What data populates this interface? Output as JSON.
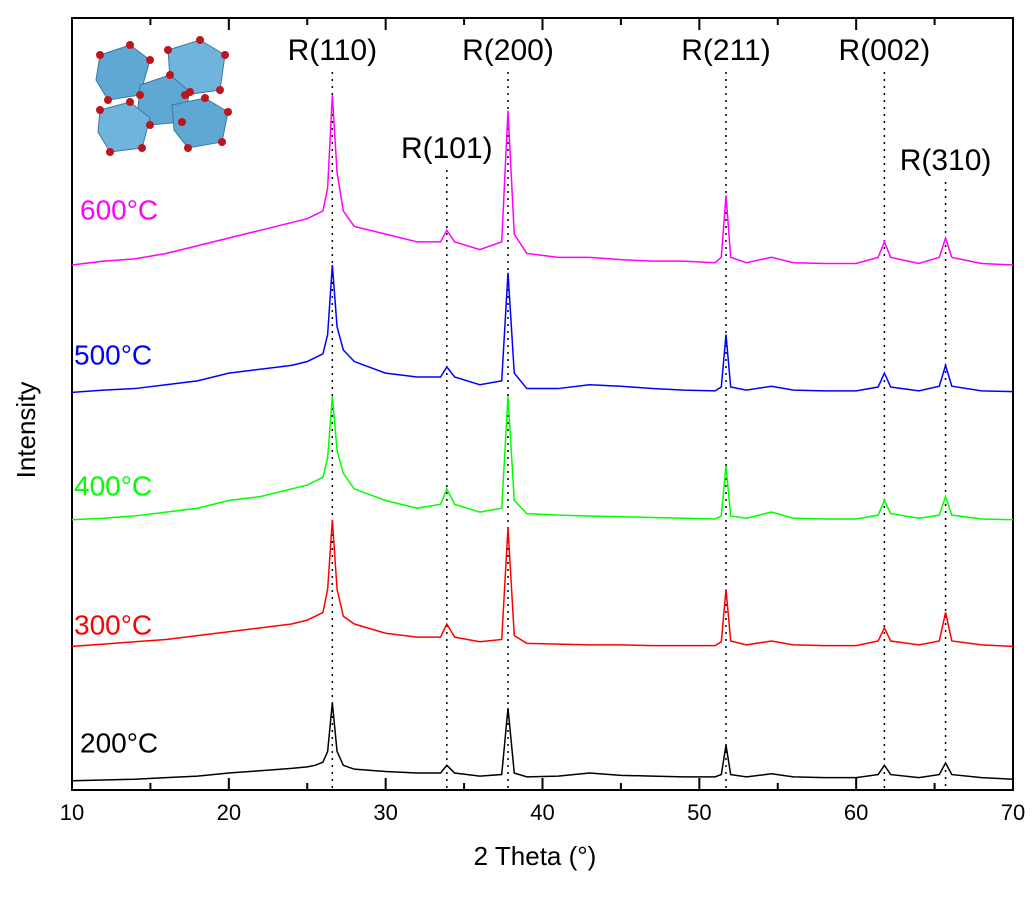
{
  "chart_data": {
    "type": "line",
    "x_label": "2 Theta (°)",
    "y_label": "Intensity",
    "xlim": [
      10,
      70
    ],
    "ylim": [
      0,
      100
    ],
    "xticks": [
      10,
      20,
      30,
      40,
      50,
      60,
      70
    ],
    "xminor_ticks": [
      15,
      25,
      35,
      45,
      55,
      65
    ],
    "x": [
      10,
      12,
      14,
      16,
      18,
      20,
      22,
      24,
      25,
      25.5,
      26,
      26.3,
      26.6,
      26.9,
      27.3,
      28,
      30,
      32,
      33.5,
      33.9,
      34.4,
      36,
      37.4,
      37.8,
      38.2,
      39,
      41,
      43,
      45,
      47,
      49,
      51,
      51.4,
      51.7,
      52,
      53,
      54.6,
      56,
      58,
      60,
      61.4,
      61.8,
      62.2,
      64,
      65.3,
      65.7,
      66.1,
      68,
      70
    ],
    "series": [
      {
        "name": "600°C",
        "color": "#ff00ff",
        "values": [
          68,
          68.5,
          68.8,
          69.5,
          70.5,
          71.5,
          72.5,
          73.5,
          74,
          74.5,
          75,
          78,
          90,
          80,
          75,
          73,
          72,
          71,
          71,
          72.5,
          71,
          70,
          71,
          88,
          72,
          69.5,
          69,
          69,
          68.7,
          68.5,
          68.5,
          68.3,
          69,
          77,
          69,
          68.3,
          69,
          68.3,
          68.2,
          68.2,
          69,
          71,
          69,
          68.2,
          69,
          71.5,
          69,
          68.2,
          68
        ]
      },
      {
        "name": "500°C",
        "color": "#0000ff",
        "values": [
          51.5,
          51.8,
          52,
          52.5,
          53,
          54,
          54.5,
          55,
          55.5,
          56,
          56.5,
          59,
          68,
          60,
          57,
          55.5,
          54,
          53.5,
          53.5,
          54.8,
          53.5,
          52.5,
          53,
          67,
          54,
          52,
          52,
          52.5,
          52.3,
          52,
          51.8,
          51.7,
          52.2,
          59,
          52.2,
          51.8,
          52.3,
          51.8,
          51.7,
          51.7,
          52.2,
          54,
          52.2,
          51.7,
          52.3,
          55,
          52.3,
          51.7,
          51.6
        ]
      },
      {
        "name": "400°C",
        "color": "#00ff00",
        "values": [
          35,
          35.2,
          35.5,
          36,
          36.5,
          37.5,
          38,
          39,
          39.5,
          40,
          40.5,
          43,
          51,
          44,
          41,
          39,
          37.5,
          36.5,
          37,
          39,
          37,
          36,
          36.5,
          51,
          37.5,
          35.8,
          35.6,
          35.5,
          35.4,
          35.3,
          35.2,
          35.1,
          35.5,
          42,
          35.5,
          35.2,
          36,
          35.2,
          35.1,
          35.1,
          35.6,
          37.5,
          35.8,
          35.2,
          35.6,
          38,
          35.6,
          35.1,
          35
        ]
      },
      {
        "name": "300°C",
        "color": "#ff0000",
        "values": [
          18.6,
          18.9,
          19.2,
          19.5,
          20,
          20.5,
          21,
          21.5,
          22,
          22.5,
          23,
          26,
          35,
          26,
          22.5,
          21.5,
          20.3,
          19.8,
          19.8,
          21.5,
          19.8,
          19.2,
          19.5,
          34,
          20,
          19,
          18.9,
          18.8,
          18.8,
          18.7,
          18.7,
          18.7,
          19.2,
          26,
          19.3,
          18.8,
          19.3,
          18.8,
          18.7,
          18.7,
          19.3,
          21,
          19.3,
          18.8,
          19.3,
          23,
          19.3,
          18.8,
          18.6
        ]
      },
      {
        "name": "200°C",
        "color": "#000000",
        "values": [
          1.2,
          1.3,
          1.4,
          1.6,
          1.8,
          2.2,
          2.5,
          2.8,
          3,
          3.2,
          3.6,
          5,
          11.3,
          5,
          3.2,
          2.7,
          2.4,
          2.2,
          2.2,
          3.2,
          2.2,
          1.8,
          2,
          10.6,
          2.2,
          1.7,
          1.8,
          2.2,
          1.9,
          1.8,
          1.7,
          1.7,
          2,
          5.8,
          2,
          1.7,
          2.1,
          1.7,
          1.6,
          1.6,
          2,
          3.2,
          2,
          1.6,
          2,
          3.5,
          2,
          1.6,
          1.4
        ]
      }
    ],
    "annotations": [
      {
        "text": "R(110)",
        "x": 26.6
      },
      {
        "text": "R(101)",
        "x": 33.9
      },
      {
        "text": "R(200)",
        "x": 37.8
      },
      {
        "text": "R(211)",
        "x": 51.7
      },
      {
        "text": "R(002)",
        "x": 61.8
      },
      {
        "text": "R(310)",
        "x": 65.7
      }
    ]
  }
}
